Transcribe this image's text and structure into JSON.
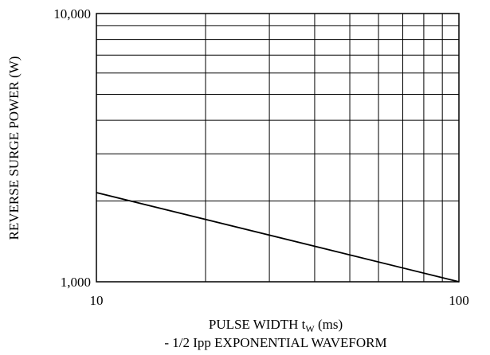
{
  "chart_data": {
    "type": "line",
    "x_scale": "log",
    "y_scale": "log",
    "xlim": [
      10,
      100
    ],
    "ylim": [
      1000,
      10000
    ],
    "x_ticks": [
      10,
      100
    ],
    "y_ticks": [
      1000,
      10000
    ],
    "x_tick_labels": [
      "10",
      "100"
    ],
    "y_tick_labels": [
      "1,000",
      "10,000"
    ],
    "xlabel_main": "PULSE WIDTH t",
    "xlabel_sub": "W",
    "xlabel_unit": " (ms)",
    "xlabel_line2": "- 1/2 Ipp EXPONENTIAL WAVEFORM",
    "ylabel": "REVERSE SURGE POWER (W)",
    "grid": true,
    "series": [
      {
        "x": [
          10,
          100
        ],
        "y": [
          2150,
          1000
        ]
      }
    ]
  }
}
